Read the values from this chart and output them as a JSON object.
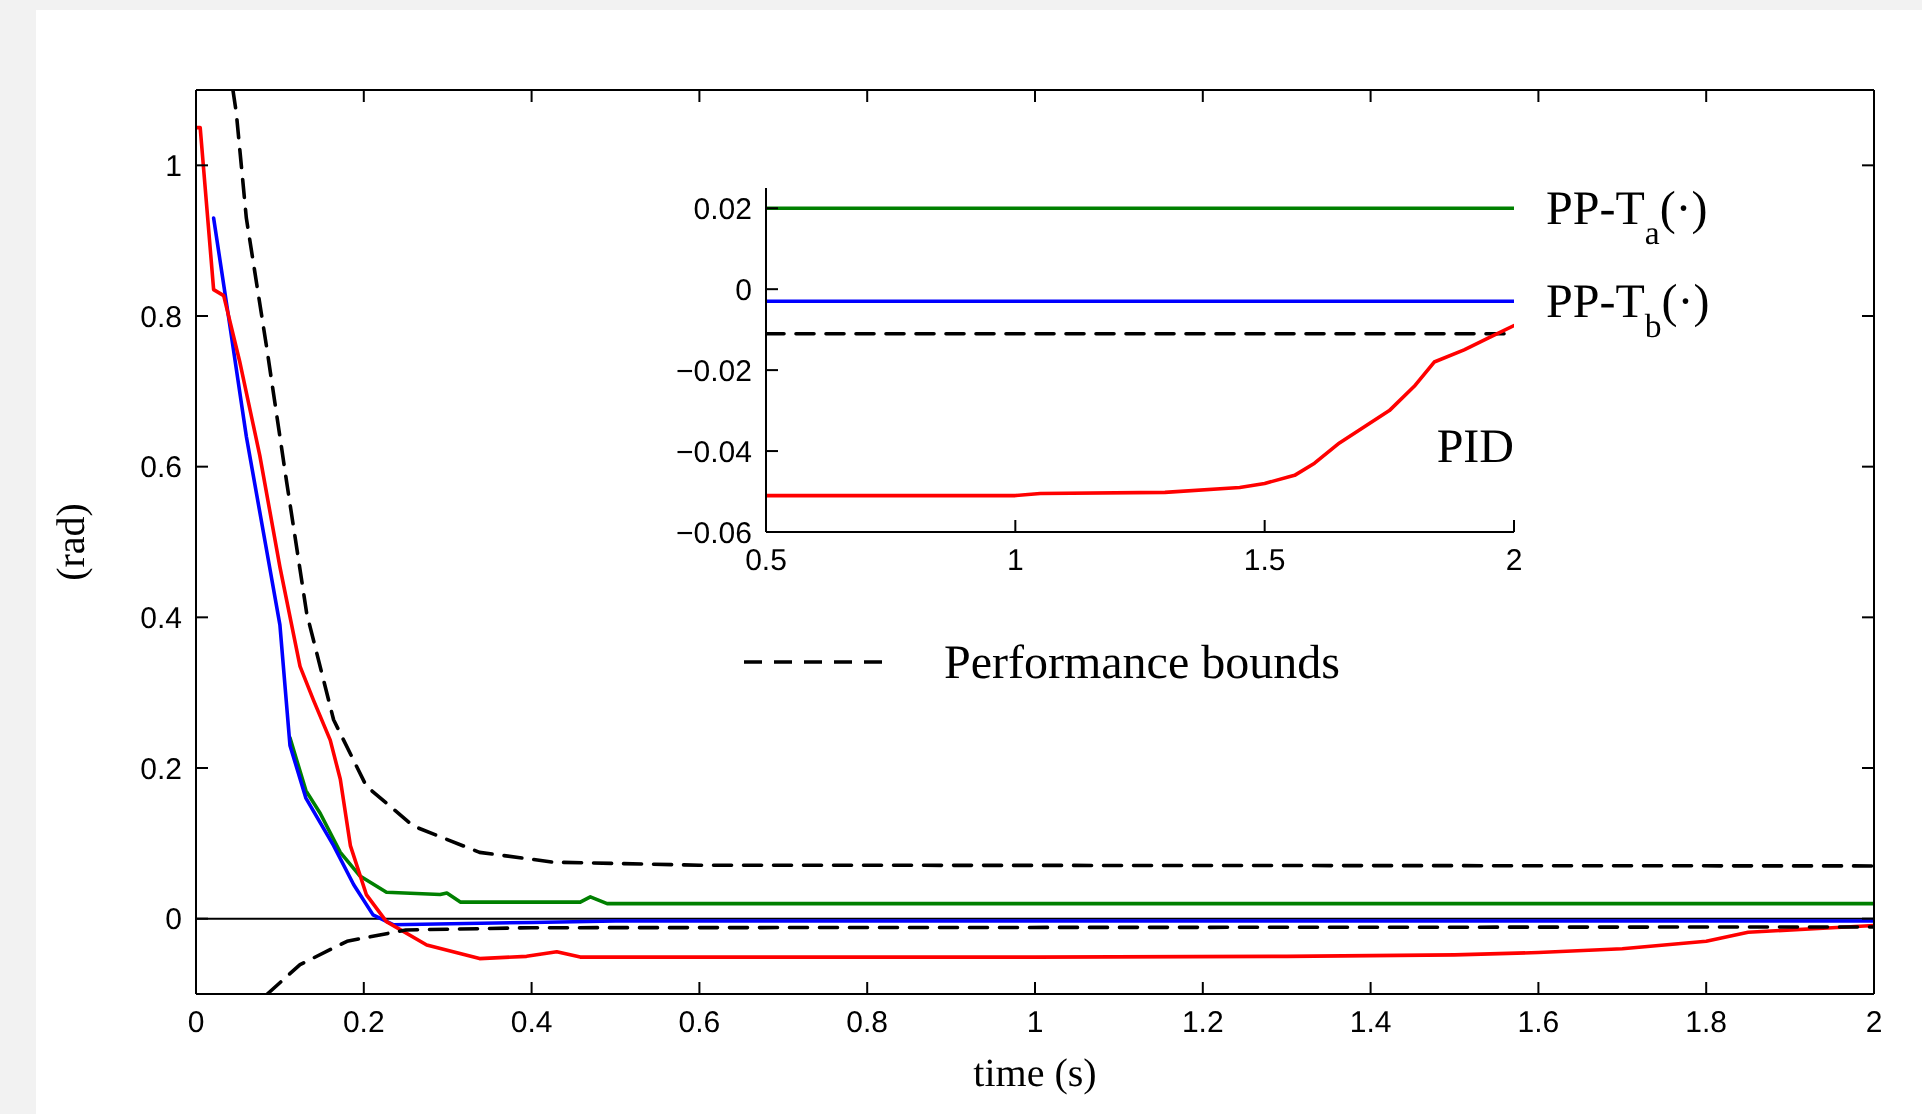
{
  "chart_data": [
    {
      "type": "line",
      "xlabel": "time (s)",
      "ylabel": "(rad)",
      "xlim": [
        0,
        2
      ],
      "ylim": [
        -0.1,
        1.1
      ],
      "xticks": [
        0,
        0.2,
        0.4,
        0.6,
        0.8,
        1,
        1.2,
        1.4,
        1.6,
        1.8,
        2
      ],
      "yticks": [
        0,
        0.2,
        0.4,
        0.6,
        0.8,
        1
      ],
      "grid": false,
      "legend": "right",
      "marker": "none",
      "ref_lines": [
        {
          "axis": "y",
          "value": 0,
          "color": "#000000",
          "line_style": "solid"
        }
      ],
      "series": [
        {
          "color": "#008000",
          "x": [
            0.112,
            0.131,
            0.148,
            0.172,
            0.195,
            0.227,
            0.291,
            0.299,
            0.315,
            0.458,
            0.47,
            0.49,
            2
          ],
          "values": [
            0.24,
            0.17,
            0.14,
            0.088,
            0.057,
            0.035,
            0.032,
            0.034,
            0.022,
            0.022,
            0.029,
            0.02,
            0.02
          ]
        },
        {
          "color": "#0000ff",
          "x": [
            0.021,
            0.04,
            0.06,
            0.084,
            0.1,
            0.112,
            0.131,
            0.164,
            0.188,
            0.211,
            0.235,
            0.4,
            0.5,
            2
          ],
          "values": [
            0.93,
            0.79,
            0.64,
            0.49,
            0.39,
            0.23,
            0.16,
            0.097,
            0.045,
            0.005,
            -0.008,
            -0.005,
            -0.003,
            -0.003
          ]
        },
        {
          "color": "#ff0000",
          "x": [
            0,
            0.005,
            0.021,
            0.033,
            0.052,
            0.076,
            0.1,
            0.124,
            0.14,
            0.16,
            0.172,
            0.184,
            0.203,
            0.227,
            0.275,
            0.338,
            0.394,
            0.43,
            0.458,
            1.0,
            1.3,
            1.5,
            1.6,
            1.7,
            1.8,
            1.85,
            1.95,
            2
          ],
          "values": [
            1.05,
            1.05,
            0.835,
            0.827,
            0.74,
            0.615,
            0.467,
            0.335,
            0.29,
            0.237,
            0.185,
            0.097,
            0.032,
            -0.004,
            -0.035,
            -0.053,
            -0.05,
            -0.044,
            -0.051,
            -0.051,
            -0.05,
            -0.048,
            -0.045,
            -0.04,
            -0.03,
            -0.018,
            -0.012,
            -0.009
          ]
        },
        {
          "name": "Performance bounds",
          "color": "#000000",
          "line_style": "dashed",
          "x": [
            0.044,
            0.048,
            0.06,
            0.084,
            0.108,
            0.132,
            0.164,
            0.203,
            0.259,
            0.338,
            0.426,
            0.6,
            2
          ],
          "values": [
            1.1,
            1.07,
            0.93,
            0.76,
            0.58,
            0.405,
            0.264,
            0.176,
            0.123,
            0.088,
            0.075,
            0.071,
            0.07
          ]
        },
        {
          "color": "#000000",
          "line_style": "dashed",
          "x": [
            0.085,
            0.124,
            0.18,
            0.25,
            0.4,
            2
          ],
          "values": [
            -0.1,
            -0.061,
            -0.03,
            -0.015,
            -0.012,
            -0.011
          ]
        }
      ]
    },
    {
      "type": "line",
      "xlim": [
        0.5,
        2
      ],
      "ylim": [
        -0.06,
        0.025
      ],
      "xticks": [
        0.5,
        1,
        1.5,
        2
      ],
      "yticks": [
        {
          "value": -0.06,
          "label": "−0.06"
        },
        {
          "value": -0.04,
          "label": "−0.04"
        },
        {
          "value": -0.02,
          "label": "−0.02"
        },
        0,
        0.02
      ],
      "grid": false,
      "legend": false,
      "marker": "none",
      "series": [
        {
          "name": "PP-T$_{a}$(·)",
          "color": "#008000",
          "x": [
            0.5,
            2
          ],
          "values": [
            0.02,
            0.02
          ]
        },
        {
          "name": "PP-T$_{b}$(·)",
          "color": "#0000ff",
          "x": [
            0.5,
            2
          ],
          "values": [
            -0.003,
            -0.003
          ]
        },
        {
          "color": "#000000",
          "line_style": "dashed",
          "x": [
            0.5,
            2
          ],
          "values": [
            -0.011,
            -0.011
          ]
        },
        {
          "name": "PID",
          "color": "#ff0000",
          "x": [
            0.5,
            1.0,
            1.05,
            1.3,
            1.45,
            1.5,
            1.56,
            1.6,
            1.65,
            1.7,
            1.75,
            1.8,
            1.84,
            1.9,
            1.95,
            2
          ],
          "values": [
            -0.051,
            -0.051,
            -0.0505,
            -0.0502,
            -0.049,
            -0.048,
            -0.046,
            -0.043,
            -0.038,
            -0.034,
            -0.03,
            -0.024,
            -0.018,
            -0.015,
            -0.012,
            -0.009
          ]
        }
      ]
    }
  ]
}
